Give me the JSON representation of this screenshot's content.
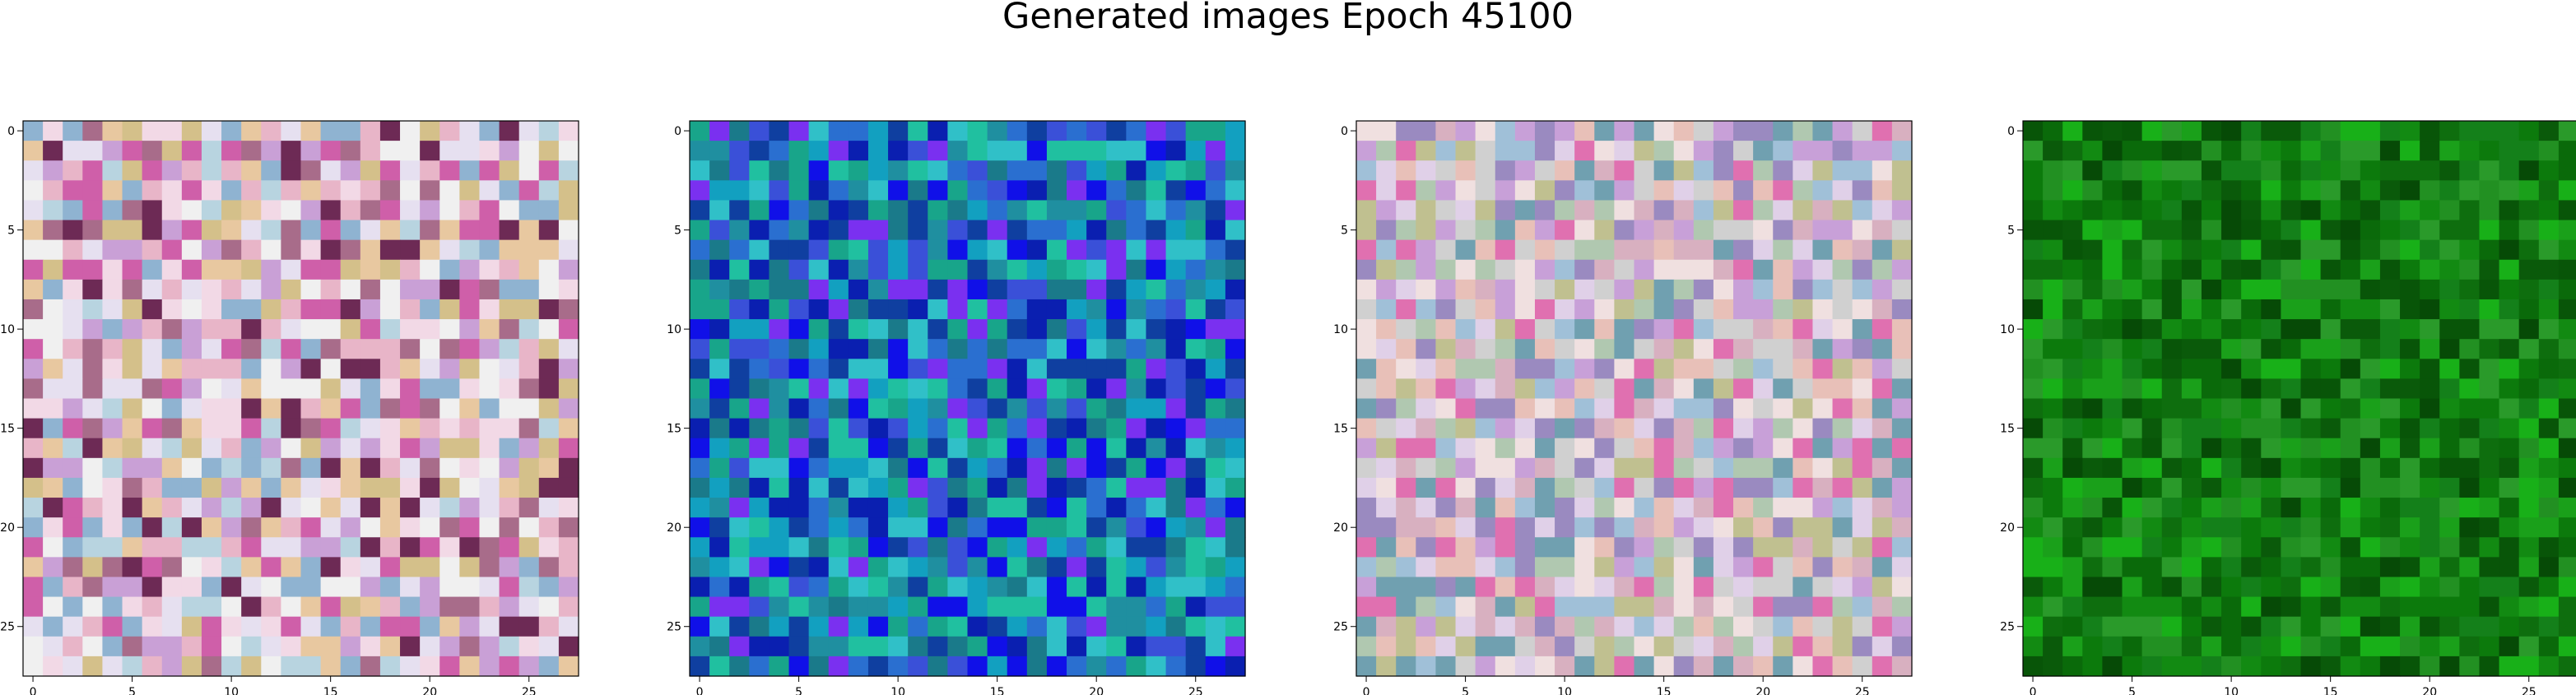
{
  "title": "Generated images Epoch 45100",
  "chart_data": {
    "type": "heatmap",
    "title": "Generated images Epoch 45100",
    "grid": false,
    "panels": [
      {
        "palette": "pastel-pink-multicolor",
        "colors": [
          "#e8b5c8",
          "#c9a0d6",
          "#f2d9e6",
          "#d4c08a",
          "#a86c8a",
          "#e6e0f0",
          "#b8d4e0",
          "#cf5fa9",
          "#8fb3d1",
          "#e8c8a0",
          "#6d2a55",
          "#f0f0f0"
        ],
        "xticks": [
          "0",
          "5",
          "10",
          "15",
          "20",
          "25"
        ],
        "yticks": [
          "0",
          "5",
          "10",
          "15",
          "20",
          "25"
        ],
        "xlim": [
          -0.5,
          27.5
        ],
        "ylim": [
          27.5,
          -0.5
        ]
      },
      {
        "palette": "blue-teal",
        "colors": [
          "#1f8fa0",
          "#18a58a",
          "#1010e8",
          "#2a6fd0",
          "#30c0c8",
          "#0a1fb0",
          "#3a50d8",
          "#12a0c0",
          "#1a7a8a",
          "#7a30f0",
          "#20c0a0",
          "#0f3fa0"
        ],
        "xticks": [
          "0",
          "5",
          "10",
          "15",
          "20",
          "25"
        ],
        "yticks": [
          "0",
          "5",
          "10",
          "15",
          "20",
          "25"
        ],
        "xlim": [
          -0.5,
          27.5
        ],
        "ylim": [
          27.5,
          -0.5
        ]
      },
      {
        "palette": "pastel-multicolor",
        "colors": [
          "#d8b0c0",
          "#b0c8b0",
          "#e0d0e8",
          "#c8a0d8",
          "#a0c0d8",
          "#f0e0e0",
          "#c0c090",
          "#e070b0",
          "#9a8ac0",
          "#d0d0d0",
          "#70a0b0",
          "#e8c0b8"
        ],
        "xticks": [
          "0",
          "5",
          "10",
          "15",
          "20",
          "25"
        ],
        "yticks": [
          "0",
          "5",
          "10",
          "15",
          "20",
          "25"
        ],
        "xlim": [
          -0.5,
          27.5
        ],
        "ylim": [
          27.5,
          -0.5
        ]
      },
      {
        "palette": "green",
        "colors": [
          "#0a6a0a",
          "#128a12",
          "#0a5a0a",
          "#1aa01a",
          "#0c7a0c",
          "#2a9a2a",
          "#064a06",
          "#18b018",
          "#0e6e0e",
          "#229022",
          "#085508",
          "#14801a"
        ],
        "xticks": [
          "0",
          "5",
          "10",
          "15",
          "20",
          "25"
        ],
        "yticks": [
          "0",
          "5",
          "10",
          "15",
          "20",
          "25"
        ],
        "xlim": [
          -0.5,
          27.5
        ],
        "ylim": [
          27.5,
          -0.5
        ]
      }
    ]
  }
}
